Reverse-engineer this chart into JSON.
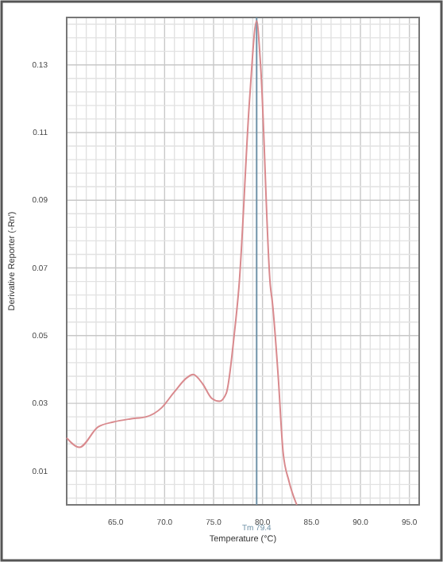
{
  "chart_data": {
    "type": "line",
    "xlabel": "Temperature (°C)",
    "ylabel": "Derivative Reporter (-Rn')",
    "x": [
      60,
      61.3,
      63.2,
      64.8,
      66.5,
      68.1,
      69.7,
      71,
      72.3,
      72.9,
      73.9,
      74.8,
      75.6,
      76.3,
      77.1,
      77.6,
      78.7,
      79.4,
      79.8,
      80.8,
      81,
      81.6,
      82.1,
      82.7,
      83.5
    ],
    "series": [
      {
        "color": "#d98a8e",
        "values": [
          0.0198,
          0.017,
          0.023,
          0.0245,
          0.0254,
          0.026,
          0.0287,
          0.0334,
          0.0376,
          0.0385,
          0.0357,
          0.0315,
          0.0306,
          0.033,
          0.05,
          0.0647,
          0.1207,
          0.143,
          0.13,
          0.0647,
          0.06,
          0.038,
          0.0156,
          0.007,
          0
        ]
      }
    ],
    "xlim": [
      60,
      96
    ],
    "ylim": [
      0,
      0.144
    ],
    "xticks": [
      {
        "value": 61,
        "label": null
      },
      {
        "value": 62,
        "label": null
      },
      {
        "value": 63,
        "label": null
      },
      {
        "value": 64,
        "label": null
      },
      {
        "value": 65,
        "label": "65.0"
      },
      {
        "value": 66,
        "label": null
      },
      {
        "value": 67,
        "label": null
      },
      {
        "value": 68,
        "label": null
      },
      {
        "value": 69,
        "label": null
      },
      {
        "value": 70,
        "label": "70.0"
      },
      {
        "value": 71,
        "label": null
      },
      {
        "value": 72,
        "label": null
      },
      {
        "value": 73,
        "label": null
      },
      {
        "value": 74,
        "label": null
      },
      {
        "value": 75,
        "label": "75.0"
      },
      {
        "value": 76,
        "label": null
      },
      {
        "value": 77,
        "label": null
      },
      {
        "value": 78,
        "label": null
      },
      {
        "value": 79,
        "label": null
      },
      {
        "value": 80,
        "label": "80.0"
      },
      {
        "value": 81,
        "label": null
      },
      {
        "value": 82,
        "label": null
      },
      {
        "value": 83,
        "label": null
      },
      {
        "value": 84,
        "label": null
      },
      {
        "value": 85,
        "label": "85.0"
      },
      {
        "value": 86,
        "label": null
      },
      {
        "value": 87,
        "label": null
      },
      {
        "value": 88,
        "label": null
      },
      {
        "value": 89,
        "label": null
      },
      {
        "value": 90,
        "label": "90.0"
      },
      {
        "value": 91,
        "label": null
      },
      {
        "value": 92,
        "label": null
      },
      {
        "value": 93,
        "label": null
      },
      {
        "value": 94,
        "label": null
      },
      {
        "value": 95,
        "label": "95.0"
      }
    ],
    "yticks": [
      {
        "value": 0.002,
        "label": null
      },
      {
        "value": 0.006,
        "label": null
      },
      0.01,
      {
        "value": 0.014,
        "label": null
      },
      {
        "value": 0.018,
        "label": null
      },
      {
        "value": 0.022,
        "label": null
      },
      {
        "value": 0.026,
        "label": null
      },
      0.03,
      {
        "value": 0.034,
        "label": null
      },
      {
        "value": 0.038,
        "label": null
      },
      {
        "value": 0.042,
        "label": null
      },
      {
        "value": 0.046,
        "label": null
      },
      0.05,
      {
        "value": 0.054,
        "label": null
      },
      {
        "value": 0.058,
        "label": null
      },
      {
        "value": 0.062,
        "label": null
      },
      {
        "value": 0.066,
        "label": null
      },
      0.07,
      {
        "value": 0.074,
        "label": null
      },
      {
        "value": 0.078,
        "label": null
      },
      {
        "value": 0.082,
        "label": null
      },
      {
        "value": 0.086,
        "label": null
      },
      0.09,
      {
        "value": 0.094,
        "label": null
      },
      {
        "value": 0.098,
        "label": null
      },
      {
        "value": 0.102,
        "label": null
      },
      {
        "value": 0.106,
        "label": null
      },
      0.11,
      {
        "value": 0.114,
        "label": null
      },
      {
        "value": 0.118,
        "label": null
      },
      {
        "value": 0.122,
        "label": null
      },
      {
        "value": 0.126,
        "label": null
      },
      0.13,
      {
        "value": 0.134,
        "label": null
      },
      {
        "value": 0.138,
        "label": null
      },
      {
        "value": 0.142,
        "label": null
      }
    ],
    "grid": true,
    "marker": "none",
    "line_style": "solid",
    "ref_lines": [
      {
        "axis": "x",
        "value": 79.4,
        "label": "Tm 79.4",
        "color": "#6f92a8"
      }
    ]
  }
}
